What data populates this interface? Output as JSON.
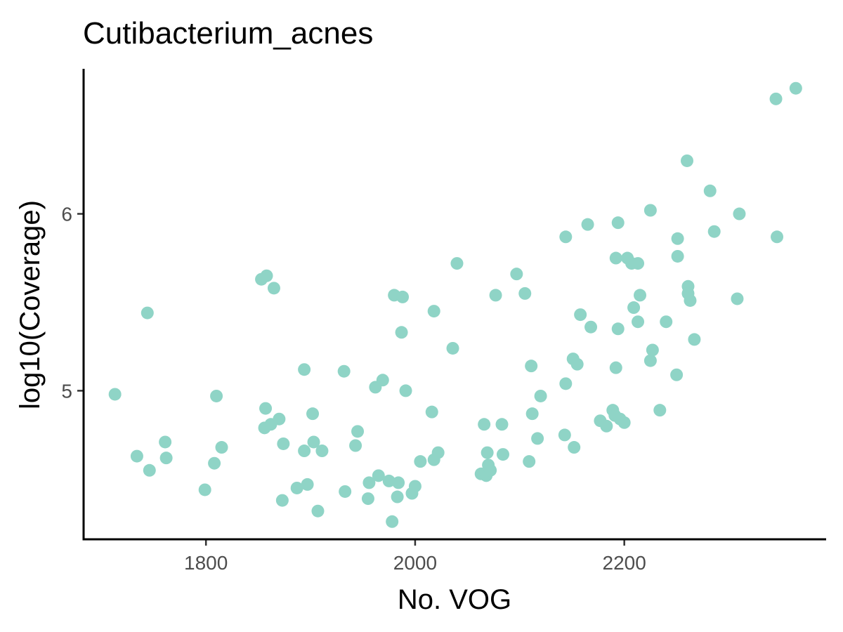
{
  "chart_data": {
    "type": "scatter",
    "title": "Cutibacterium_acnes",
    "xlabel": "No. VOG",
    "ylabel": "log10(Coverage)",
    "xlim": [
      1683,
      2393
    ],
    "ylim": [
      4.16,
      6.82
    ],
    "xticks": [
      1800,
      2000,
      2200
    ],
    "xtick_labels": [
      "1800",
      "2000",
      "2200"
    ],
    "yticks": [
      5,
      6
    ],
    "ytick_labels": [
      "5",
      "6"
    ],
    "grid": false,
    "legend": "none",
    "point_color": "#8fd4c6",
    "series": [
      {
        "name": "Cutibacterium_acnes",
        "points": [
          [
            1713,
            4.98
          ],
          [
            1734,
            4.63
          ],
          [
            1744,
            5.44
          ],
          [
            1746,
            4.55
          ],
          [
            1761,
            4.71
          ],
          [
            1762,
            4.62
          ],
          [
            1799,
            4.44
          ],
          [
            1808,
            4.59
          ],
          [
            1810,
            4.97
          ],
          [
            1815,
            4.68
          ],
          [
            1853,
            5.63
          ],
          [
            1856,
            4.79
          ],
          [
            1857,
            4.9
          ],
          [
            1858,
            5.65
          ],
          [
            1862,
            4.81
          ],
          [
            1865,
            5.58
          ],
          [
            1870,
            4.84
          ],
          [
            1873,
            4.38
          ],
          [
            1874,
            4.7
          ],
          [
            1887,
            4.45
          ],
          [
            1894,
            5.12
          ],
          [
            1894,
            4.66
          ],
          [
            1897,
            4.47
          ],
          [
            1902,
            4.87
          ],
          [
            1903,
            4.71
          ],
          [
            1907,
            4.32
          ],
          [
            1911,
            4.66
          ],
          [
            1932,
            5.11
          ],
          [
            1933,
            4.43
          ],
          [
            1943,
            4.69
          ],
          [
            1945,
            4.77
          ],
          [
            1955,
            4.39
          ],
          [
            1956,
            4.48
          ],
          [
            1962,
            5.02
          ],
          [
            1965,
            4.52
          ],
          [
            1969,
            5.06
          ],
          [
            1975,
            4.49
          ],
          [
            1978,
            4.26
          ],
          [
            1980,
            5.54
          ],
          [
            1983,
            4.4
          ],
          [
            1984,
            4.48
          ],
          [
            1987,
            5.33
          ],
          [
            1988,
            5.53
          ],
          [
            1991,
            5.0
          ],
          [
            1997,
            4.42
          ],
          [
            2000,
            4.46
          ],
          [
            2005,
            4.6
          ],
          [
            2016,
            4.88
          ],
          [
            2018,
            5.45
          ],
          [
            2018,
            4.61
          ],
          [
            2022,
            4.65
          ],
          [
            2036,
            5.24
          ],
          [
            2040,
            5.72
          ],
          [
            2063,
            4.53
          ],
          [
            2066,
            4.81
          ],
          [
            2068,
            4.52
          ],
          [
            2069,
            4.65
          ],
          [
            2070,
            4.58
          ],
          [
            2072,
            4.55
          ],
          [
            2077,
            5.54
          ],
          [
            2083,
            4.81
          ],
          [
            2084,
            4.64
          ],
          [
            2097,
            5.66
          ],
          [
            2105,
            5.55
          ],
          [
            2109,
            4.6
          ],
          [
            2111,
            5.14
          ],
          [
            2112,
            4.87
          ],
          [
            2117,
            4.73
          ],
          [
            2120,
            4.97
          ],
          [
            2143,
            4.75
          ],
          [
            2144,
            5.04
          ],
          [
            2144,
            5.87
          ],
          [
            2151,
            5.18
          ],
          [
            2152,
            4.68
          ],
          [
            2155,
            5.15
          ],
          [
            2158,
            5.43
          ],
          [
            2165,
            5.94
          ],
          [
            2168,
            5.36
          ],
          [
            2177,
            4.83
          ],
          [
            2183,
            4.8
          ],
          [
            2189,
            4.89
          ],
          [
            2191,
            4.86
          ],
          [
            2192,
            5.13
          ],
          [
            2192,
            5.75
          ],
          [
            2194,
            5.95
          ],
          [
            2194,
            5.35
          ],
          [
            2196,
            4.84
          ],
          [
            2200,
            4.82
          ],
          [
            2203,
            5.75
          ],
          [
            2207,
            5.72
          ],
          [
            2209,
            5.47
          ],
          [
            2213,
            5.72
          ],
          [
            2213,
            5.39
          ],
          [
            2215,
            5.54
          ],
          [
            2225,
            5.17
          ],
          [
            2225,
            6.02
          ],
          [
            2227,
            5.23
          ],
          [
            2234,
            4.89
          ],
          [
            2240,
            5.39
          ],
          [
            2250,
            5.09
          ],
          [
            2251,
            5.76
          ],
          [
            2251,
            5.86
          ],
          [
            2260,
            6.3
          ],
          [
            2261,
            5.59
          ],
          [
            2261,
            5.55
          ],
          [
            2263,
            5.51
          ],
          [
            2267,
            5.29
          ],
          [
            2282,
            6.13
          ],
          [
            2286,
            5.9
          ],
          [
            2308,
            5.52
          ],
          [
            2310,
            6.0
          ],
          [
            2345,
            6.65
          ],
          [
            2346,
            5.87
          ],
          [
            2364,
            6.71
          ]
        ]
      }
    ]
  }
}
